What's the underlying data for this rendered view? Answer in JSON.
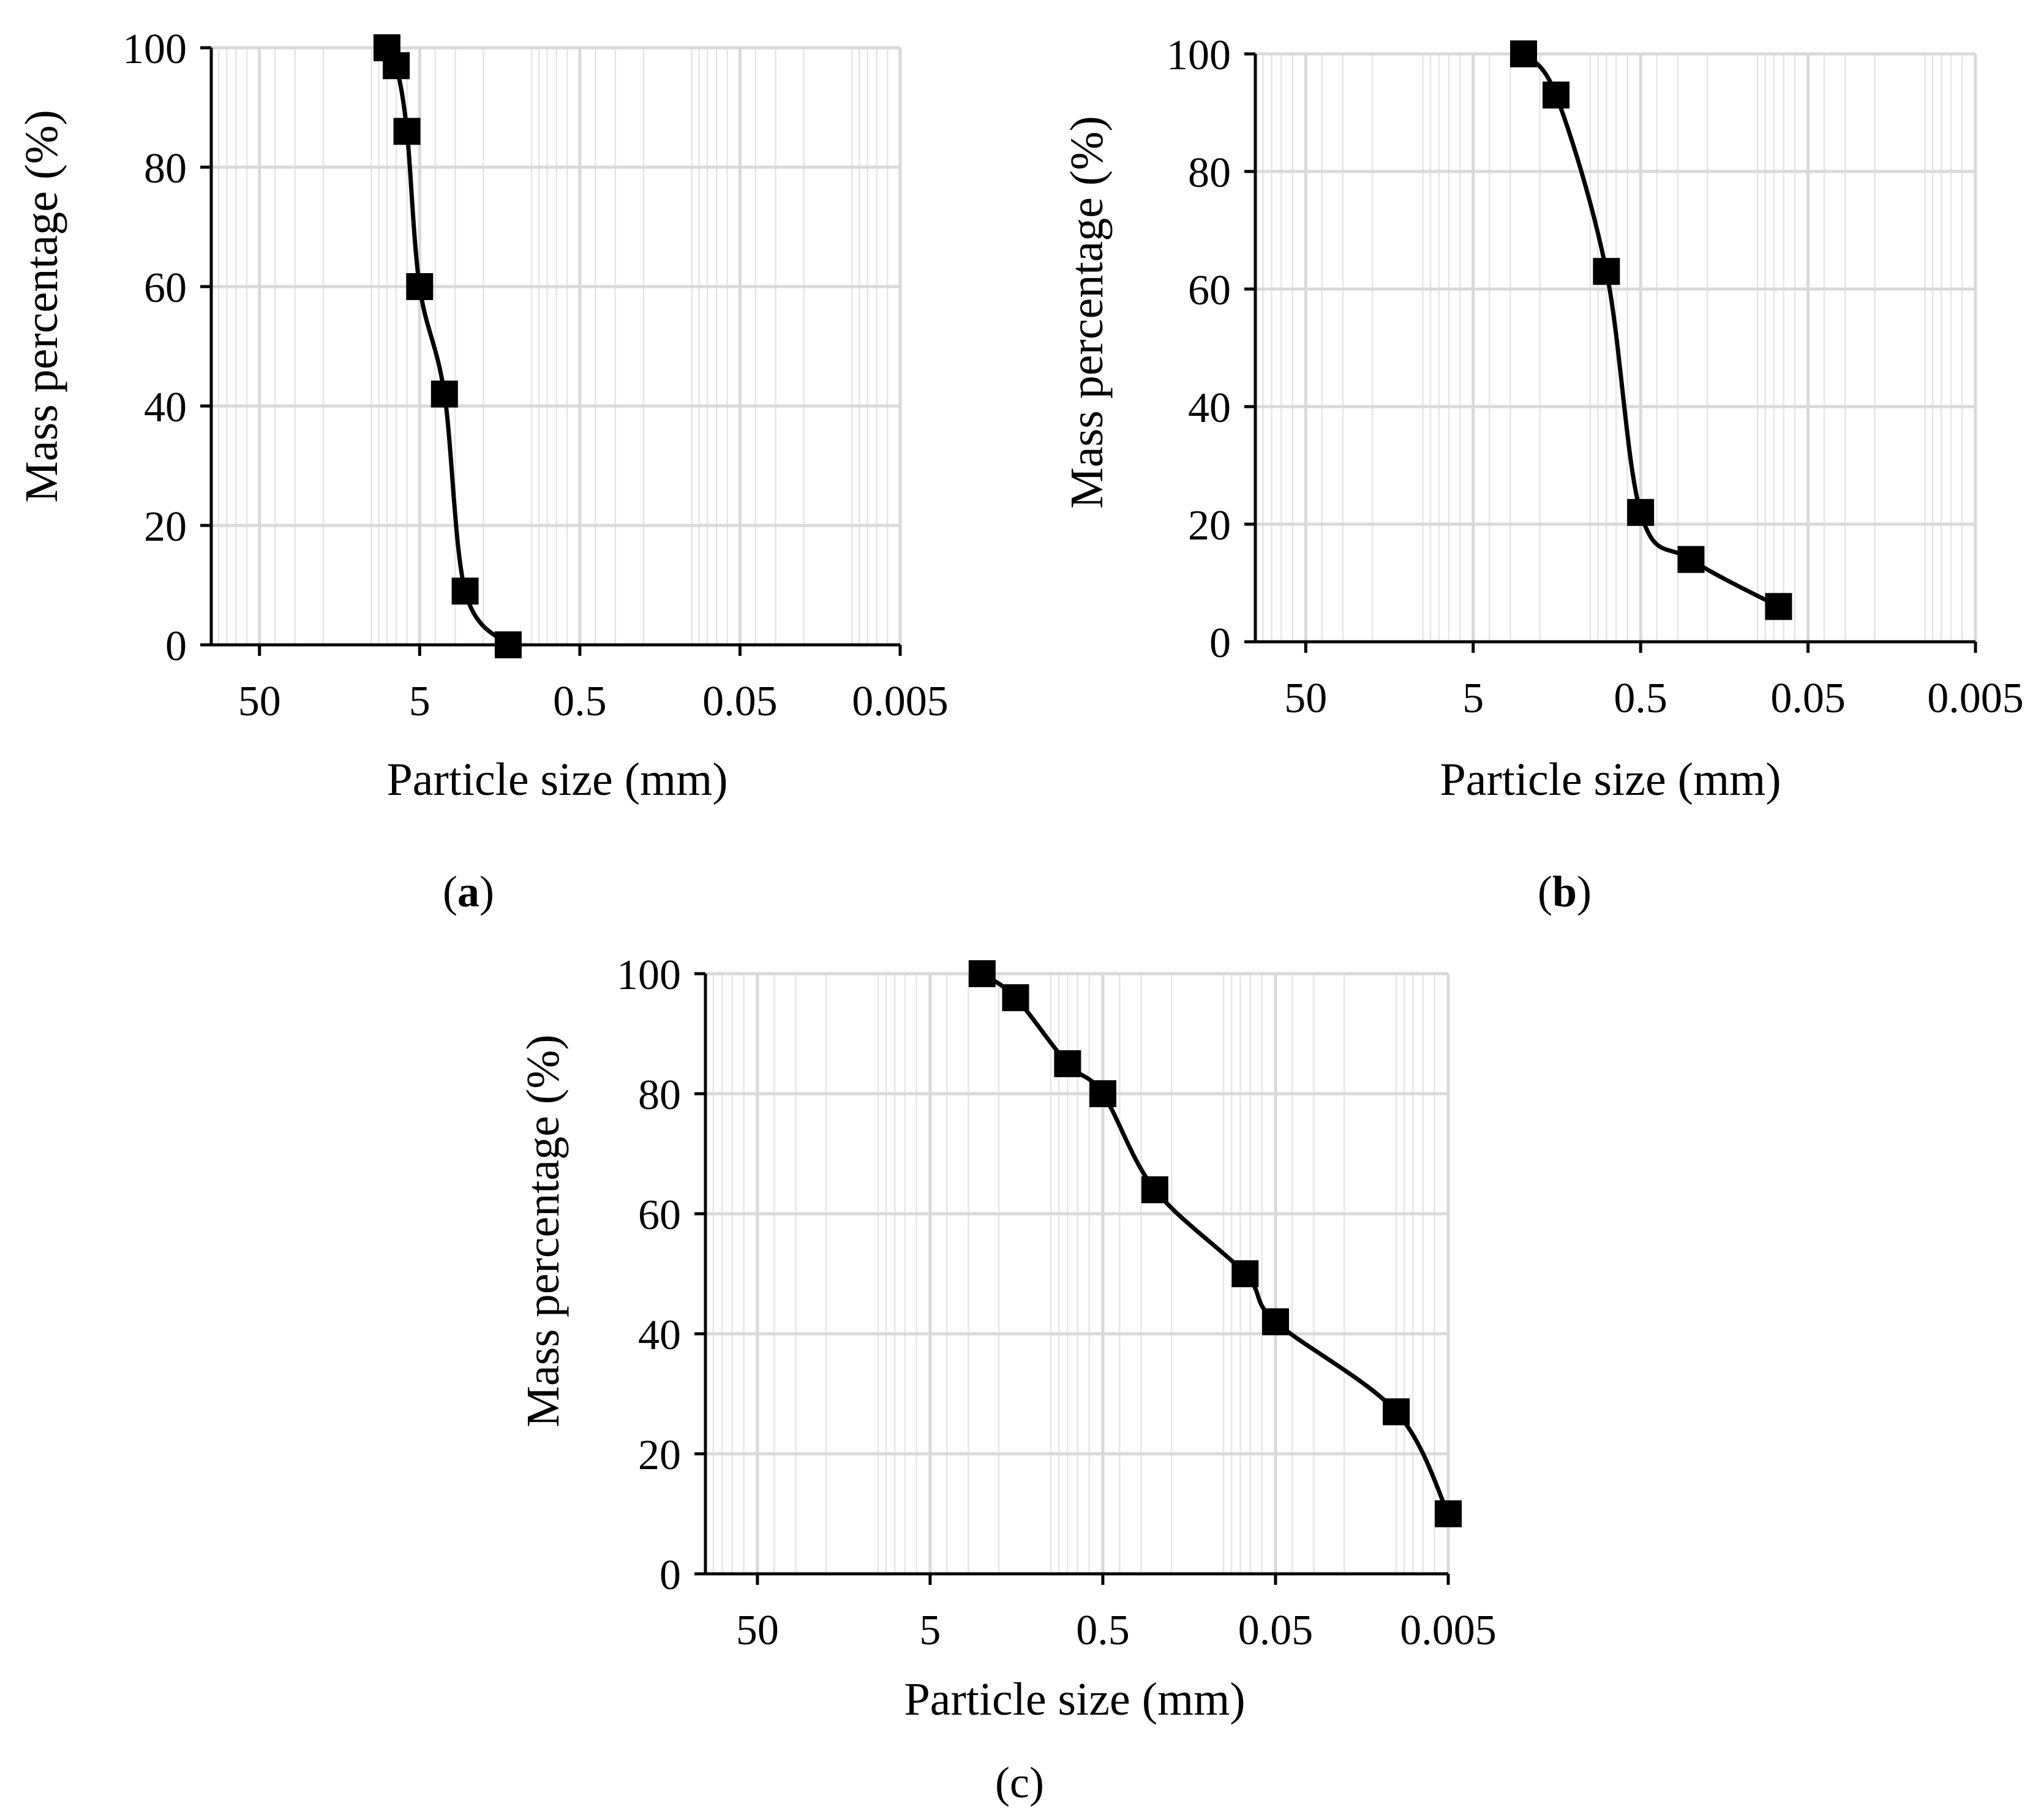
{
  "figure": {
    "colors": {
      "background": "#ffffff",
      "grid_major": "#d9d9d9",
      "grid_minor": "#e6e6e6",
      "axis": "#000000",
      "series": "#000000"
    }
  },
  "chart_data": [
    {
      "id": "a",
      "type": "scatter",
      "panel_label": "a",
      "label_bold": true,
      "title": "",
      "xlabel": "Particle size (mm)",
      "ylabel": "Mass percentage (%)",
      "x_scale": "log-reversed",
      "xlim": [
        100,
        0.005
      ],
      "ylim": [
        0,
        100
      ],
      "x_ticks": [
        50,
        5,
        0.5,
        0.05,
        0.005
      ],
      "x_tick_labels": [
        "50",
        "5",
        "0.5",
        "0.05",
        "0.005"
      ],
      "y_ticks": [
        0,
        20,
        40,
        60,
        80,
        100
      ],
      "y_tick_labels": [
        "0",
        "20",
        "40",
        "60",
        "80",
        "100"
      ],
      "grid": true,
      "marker": "square",
      "line": "smooth",
      "series": [
        {
          "name": "",
          "x": [
            8.0,
            7.0,
            6.0,
            5.0,
            3.5,
            2.6,
            1.4
          ],
          "y": [
            100,
            97,
            86,
            60,
            42,
            9,
            0
          ]
        }
      ]
    },
    {
      "id": "b",
      "type": "scatter",
      "panel_label": "b",
      "label_bold": true,
      "title": "",
      "xlabel": "Particle size (mm)",
      "ylabel": "Mass percentage (%)",
      "x_scale": "log-reversed",
      "xlim": [
        100,
        0.005
      ],
      "ylim": [
        0,
        100
      ],
      "x_ticks": [
        50,
        5,
        0.5,
        0.05,
        0.005
      ],
      "x_tick_labels": [
        "50",
        "5",
        "0.5",
        "0.05",
        "0.005"
      ],
      "y_ticks": [
        0,
        20,
        40,
        60,
        80,
        100
      ],
      "y_tick_labels": [
        "0",
        "20",
        "40",
        "60",
        "80",
        "100"
      ],
      "grid": true,
      "marker": "square",
      "line": "smooth",
      "series": [
        {
          "name": "",
          "x": [
            2.5,
            1.6,
            0.8,
            0.5,
            0.25,
            0.075
          ],
          "y": [
            100,
            93,
            63,
            22,
            14,
            6
          ]
        }
      ]
    },
    {
      "id": "c",
      "type": "scatter",
      "panel_label": "c",
      "label_bold": false,
      "title": "",
      "xlabel": "Particle size (mm)",
      "ylabel": "Mass percentage (%)",
      "x_scale": "log-reversed",
      "xlim": [
        100,
        0.005
      ],
      "ylim": [
        0,
        100
      ],
      "x_ticks": [
        50,
        5,
        0.5,
        0.05,
        0.005
      ],
      "x_tick_labels": [
        "50",
        "5",
        "0.5",
        "0.05",
        "0.005"
      ],
      "y_ticks": [
        0,
        20,
        40,
        60,
        80,
        100
      ],
      "y_tick_labels": [
        "0",
        "20",
        "40",
        "60",
        "80",
        "100"
      ],
      "grid": true,
      "marker": "square",
      "line": "smooth",
      "series": [
        {
          "name": "",
          "x": [
            2.5,
            1.6,
            0.8,
            0.5,
            0.25,
            0.075,
            0.05,
            0.01,
            0.005
          ],
          "y": [
            100,
            96,
            85,
            80,
            64,
            50,
            42,
            27,
            10
          ]
        }
      ]
    }
  ]
}
